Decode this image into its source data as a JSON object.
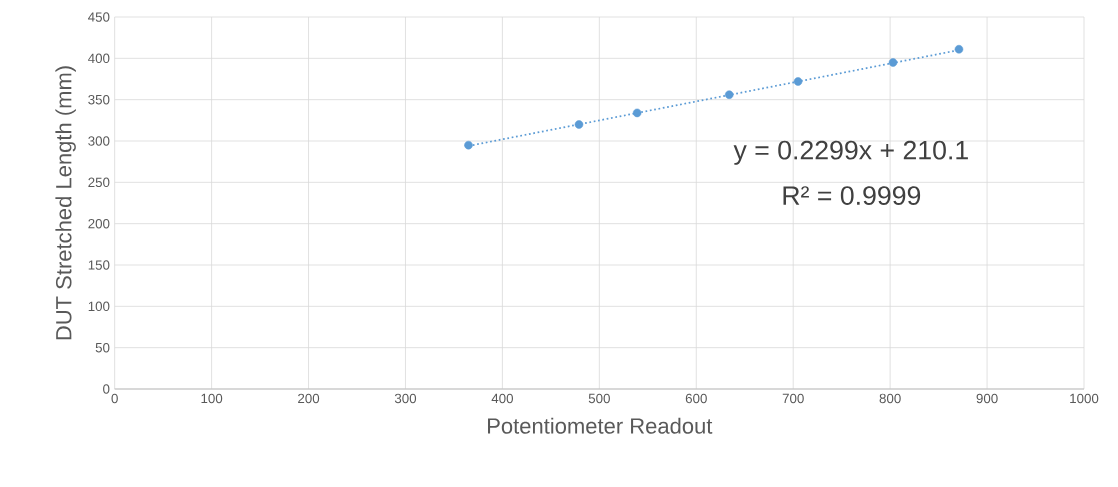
{
  "chart_data": {
    "type": "scatter",
    "xlabel": "Potentiometer Readout",
    "ylabel": "DUT Stretched Length (mm)",
    "xlim": [
      0,
      1000
    ],
    "xticks": [
      0,
      100,
      200,
      300,
      400,
      500,
      600,
      700,
      800,
      900,
      1000
    ],
    "ylim": [
      0,
      450
    ],
    "yticks": [
      0,
      50,
      100,
      150,
      200,
      250,
      300,
      350,
      400,
      450
    ],
    "grid": true,
    "marker": "circle",
    "series": [
      {
        "type": "scatter",
        "color": "#5b9bd5",
        "x": [
          365,
          479,
          539,
          634,
          705,
          803,
          871
        ],
        "values": [
          295,
          320,
          334,
          356,
          372,
          395,
          411
        ]
      },
      {
        "type": "line",
        "color": "#5b9bd5",
        "line_style": "dotted",
        "marker": "none",
        "x": [
          365,
          871
        ],
        "values": [
          294,
          410
        ]
      }
    ],
    "annotations": [
      "y = 0.2299x + 210.1",
      "R² = 0.9999"
    ]
  }
}
